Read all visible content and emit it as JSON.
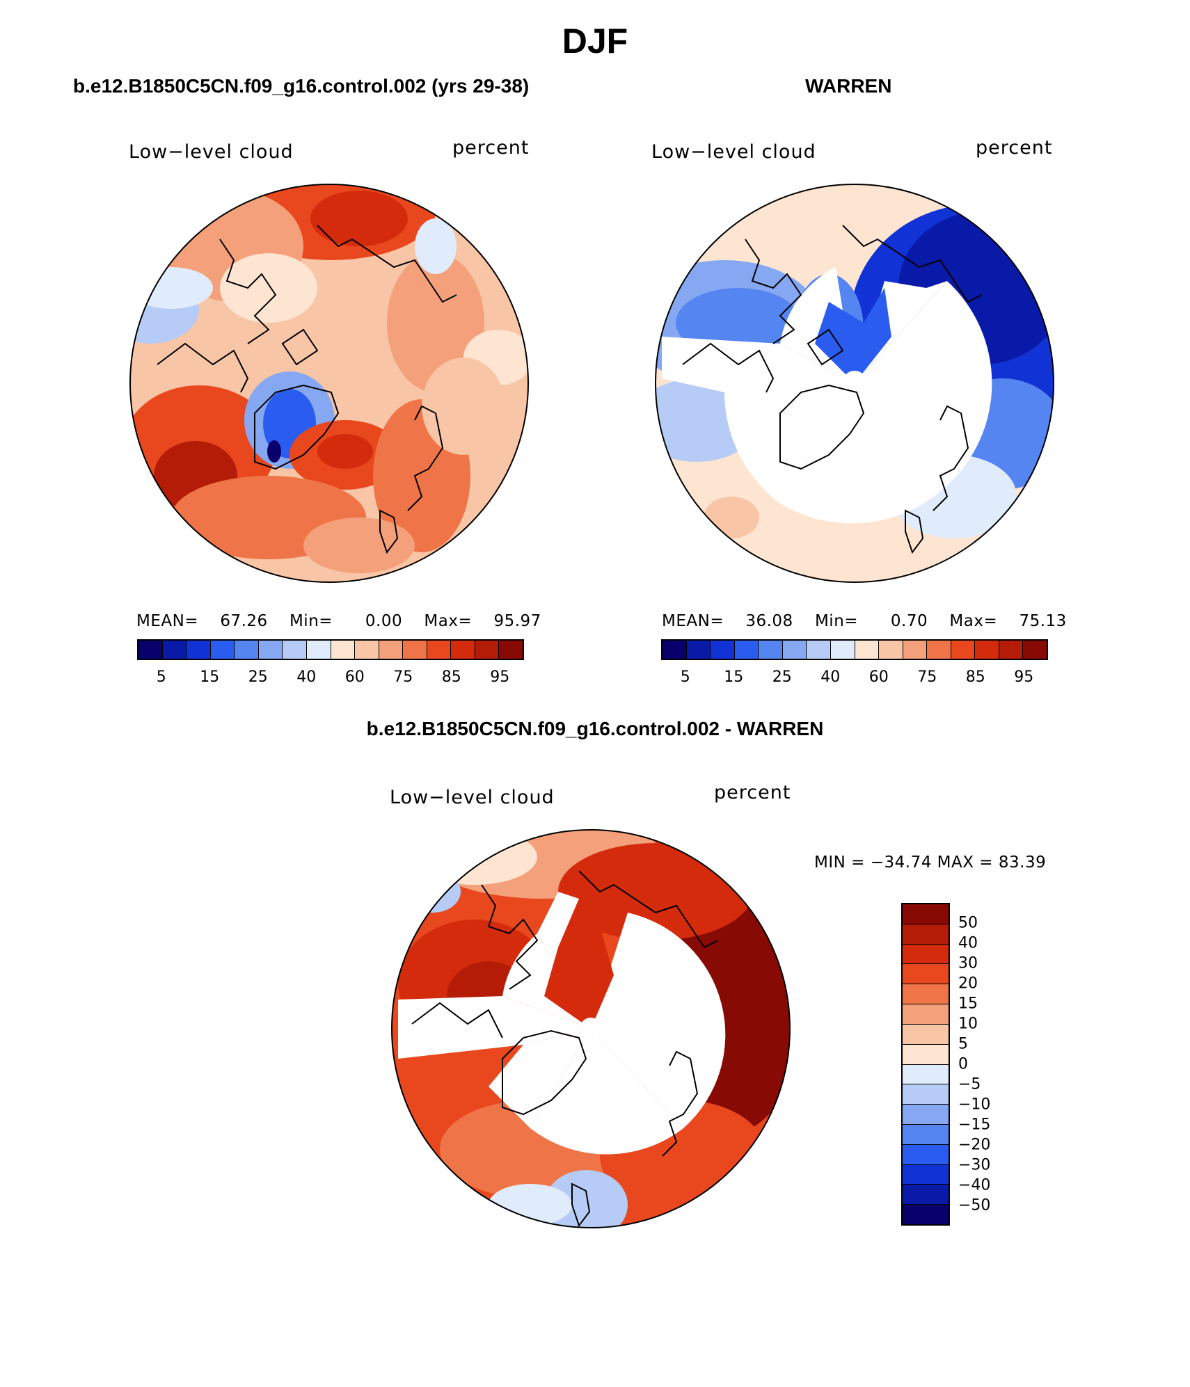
{
  "figure": {
    "title": "DJF",
    "diff_title": "b.e12.B1850C5CN.f09_g16.control.002 - WARREN"
  },
  "panels": [
    {
      "title": "b.e12.B1850C5CN.f09_g16.control.002 (yrs 29-38)",
      "variable": "Low−level cloud",
      "units": "percent",
      "stats": {
        "mean_label": "MEAN=",
        "mean": "67.26",
        "min_label": "Min=",
        "min": "0.00",
        "max_label": "Max=",
        "max": "95.97"
      }
    },
    {
      "title": "WARREN",
      "variable": "Low−level cloud",
      "units": "percent",
      "stats": {
        "mean_label": "MEAN=",
        "mean": "36.08",
        "min_label": "Min=",
        "min": "0.70",
        "max_label": "Max=",
        "max": "75.13"
      }
    },
    {
      "title": "b.e12.B1850C5CN.f09_g16.control.002 - WARREN",
      "variable": "Low−level cloud",
      "units": "percent",
      "stats": {
        "text": "MIN = −34.74 MAX =  83.39"
      }
    }
  ],
  "colorbar_abs": {
    "ticks": [
      "5",
      "15",
      "25",
      "40",
      "60",
      "75",
      "85",
      "95"
    ],
    "colors": [
      "#08006b",
      "#0a1aa8",
      "#1133d6",
      "#2b5cf0",
      "#5585f0",
      "#86a8f2",
      "#b6cbf5",
      "#e0ecfb",
      "#fde5d2",
      "#f8c5a6",
      "#f4a07a",
      "#ef7548",
      "#e9481f",
      "#d52b0d",
      "#b51c08",
      "#870a04"
    ]
  },
  "colorbar_diff": {
    "ticks": [
      "50",
      "40",
      "30",
      "20",
      "15",
      "10",
      "5",
      "0",
      "−5",
      "−10",
      "−15",
      "−20",
      "−30",
      "−40",
      "−50"
    ],
    "colors": [
      "#870a04",
      "#b51c08",
      "#d52b0d",
      "#e9481f",
      "#ef7548",
      "#f4a07a",
      "#f8c5a6",
      "#fde5d2",
      "#e0ecfb",
      "#b6cbf5",
      "#86a8f2",
      "#5585f0",
      "#2b5cf0",
      "#1133d6",
      "#0a1aa8",
      "#08006b"
    ]
  }
}
